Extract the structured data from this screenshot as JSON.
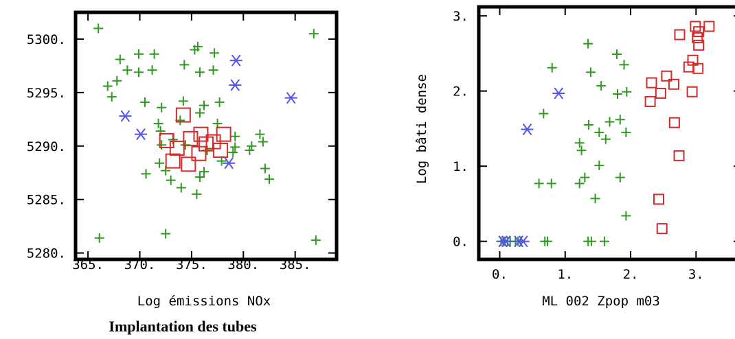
{
  "chart_data": [
    {
      "type": "scatter",
      "title": "Implantation des tubes",
      "xlabel": "Log émissions NOx",
      "ylabel": "",
      "xlim": [
        363.8,
        389.0
      ],
      "ylim": [
        5279.4,
        5302.5
      ],
      "xticks": [
        "365.",
        "370.",
        "375.",
        "380.",
        "385."
      ],
      "yticks": [
        "5280.",
        "5285.",
        "5290.",
        "5295.",
        "5300."
      ],
      "xtick_values": [
        365,
        370,
        375,
        380,
        385
      ],
      "ytick_values": [
        5280,
        5285,
        5290,
        5295,
        5300
      ],
      "series": [
        {
          "marker": "plus",
          "color": "#2e9a1f",
          "points": [
            [
              366,
              5301
            ],
            [
              386.8,
              5300.5
            ],
            [
              375.6,
              5299.3
            ],
            [
              375.3,
              5299
            ],
            [
              368.1,
              5298.1
            ],
            [
              369.9,
              5298.6
            ],
            [
              371.4,
              5298.6
            ],
            [
              377.2,
              5298.7
            ],
            [
              374.3,
              5297.6
            ],
            [
              368.8,
              5297.1
            ],
            [
              369.9,
              5296.9
            ],
            [
              371.2,
              5297.1
            ],
            [
              375.8,
              5296.9
            ],
            [
              377.1,
              5297.1
            ],
            [
              367.8,
              5296.1
            ],
            [
              366.9,
              5295.6
            ],
            [
              367.3,
              5294.6
            ],
            [
              370.5,
              5294.1
            ],
            [
              374.2,
              5294.2
            ],
            [
              376.2,
              5293.8
            ],
            [
              377.7,
              5294.1
            ],
            [
              372.1,
              5293.6
            ],
            [
              375.8,
              5293.1
            ],
            [
              373.9,
              5292.4
            ],
            [
              371.8,
              5292.1
            ],
            [
              377.5,
              5292.1
            ],
            [
              372,
              5291.4
            ],
            [
              379.2,
              5290.9
            ],
            [
              381.6,
              5291.1
            ],
            [
              373.2,
              5290.6
            ],
            [
              381.9,
              5290.4
            ],
            [
              372.1,
              5290.1
            ],
            [
              374.4,
              5290.1
            ],
            [
              379.2,
              5289.9
            ],
            [
              376.5,
              5289.6
            ],
            [
              379,
              5289.4
            ],
            [
              380.6,
              5289.6
            ],
            [
              380.8,
              5290
            ],
            [
              371.9,
              5288.4
            ],
            [
              377.9,
              5288.6
            ],
            [
              372.5,
              5287.7
            ],
            [
              376.2,
              5287.6
            ],
            [
              382.1,
              5287.9
            ],
            [
              370.6,
              5287.4
            ],
            [
              373,
              5286.8
            ],
            [
              375.8,
              5287.1
            ],
            [
              374,
              5286.1
            ],
            [
              382.5,
              5286.9
            ],
            [
              375.5,
              5285.5
            ],
            [
              372.5,
              5281.8
            ],
            [
              366.1,
              5281.4
            ],
            [
              387,
              5281.2
            ]
          ]
        },
        {
          "marker": "asterisk",
          "color": "#5555ee",
          "points": [
            [
              379.3,
              5298
            ],
            [
              379.2,
              5295.7
            ],
            [
              384.6,
              5294.5
            ],
            [
              368.6,
              5292.8
            ],
            [
              370.1,
              5291.1
            ],
            [
              378.6,
              5288.4
            ]
          ]
        },
        {
          "marker": "square",
          "color": "#d42a2a",
          "points": [
            [
              374.2,
              5292.9
            ],
            [
              372.6,
              5290.5
            ],
            [
              373.6,
              5289.8
            ],
            [
              374.9,
              5290.7
            ],
            [
              375.9,
              5291.1
            ],
            [
              377.1,
              5290.4
            ],
            [
              378.1,
              5291.1
            ],
            [
              373.2,
              5288.6
            ],
            [
              374.7,
              5288.3
            ],
            [
              376.4,
              5290.2
            ],
            [
              375.7,
              5289.3
            ],
            [
              377.8,
              5289.6
            ]
          ]
        }
      ]
    },
    {
      "type": "scatter",
      "title": "",
      "xlabel": "ML 002 Zpop m03",
      "ylabel": "Log bâti dense",
      "xlim": [
        -0.32,
        3.7
      ],
      "ylim": [
        -0.24,
        3.12
      ],
      "xticks": [
        "0.",
        "1.",
        "2.",
        "3."
      ],
      "yticks": [
        "0.",
        "1.",
        "2.",
        "3."
      ],
      "xtick_values": [
        0,
        1,
        2,
        3
      ],
      "ytick_values": [
        0,
        1,
        2,
        3
      ],
      "series": [
        {
          "marker": "plus",
          "color": "#2e9a1f",
          "points": [
            [
              0.02,
              0
            ],
            [
              0.05,
              0
            ],
            [
              0.08,
              0
            ],
            [
              0.12,
              0
            ],
            [
              0.16,
              0
            ],
            [
              0.24,
              0
            ],
            [
              0.28,
              0
            ],
            [
              0.32,
              0
            ],
            [
              0.69,
              0
            ],
            [
              0.73,
              0
            ],
            [
              1.35,
              0
            ],
            [
              1.4,
              0
            ],
            [
              1.6,
              0
            ],
            [
              1.35,
              2.63
            ],
            [
              1.79,
              2.49
            ],
            [
              1.9,
              2.35
            ],
            [
              0.8,
              2.31
            ],
            [
              1.39,
              2.25
            ],
            [
              1.55,
              2.07
            ],
            [
              1.94,
              1.99
            ],
            [
              1.8,
              1.96
            ],
            [
              0.67,
              1.7
            ],
            [
              1.36,
              1.55
            ],
            [
              1.52,
              1.45
            ],
            [
              1.84,
              1.62
            ],
            [
              1.68,
              1.59
            ],
            [
              1.93,
              1.45
            ],
            [
              1.62,
              1.36
            ],
            [
              1.22,
              1.31
            ],
            [
              1.25,
              1.21
            ],
            [
              1.52,
              1.01
            ],
            [
              1.3,
              0.85
            ],
            [
              1.84,
              0.85
            ],
            [
              0.6,
              0.77
            ],
            [
              0.79,
              0.77
            ],
            [
              1.22,
              0.77
            ],
            [
              1.46,
              0.57
            ],
            [
              1.93,
              0.34
            ]
          ]
        },
        {
          "marker": "asterisk",
          "color": "#5555ee",
          "points": [
            [
              0.05,
              0
            ],
            [
              0.1,
              0
            ],
            [
              0.29,
              0
            ],
            [
              0.36,
              0
            ],
            [
              0.42,
              1.49
            ],
            [
              0.9,
              1.97
            ]
          ]
        },
        {
          "marker": "square",
          "color": "#d42a2a",
          "points": [
            [
              2.99,
              2.86
            ],
            [
              3.2,
              2.86
            ],
            [
              2.75,
              2.75
            ],
            [
              3.04,
              2.79
            ],
            [
              3.02,
              2.71
            ],
            [
              3.04,
              2.61
            ],
            [
              2.89,
              2.32
            ],
            [
              2.95,
              2.41
            ],
            [
              3.03,
              2.3
            ],
            [
              2.55,
              2.2
            ],
            [
              2.66,
              2.09
            ],
            [
              2.32,
              2.11
            ],
            [
              2.46,
              1.97
            ],
            [
              2.3,
              1.86
            ],
            [
              2.94,
              1.99
            ],
            [
              2.67,
              1.58
            ],
            [
              2.74,
              1.14
            ],
            [
              2.43,
              0.56
            ],
            [
              2.48,
              0.17
            ]
          ]
        }
      ]
    }
  ]
}
